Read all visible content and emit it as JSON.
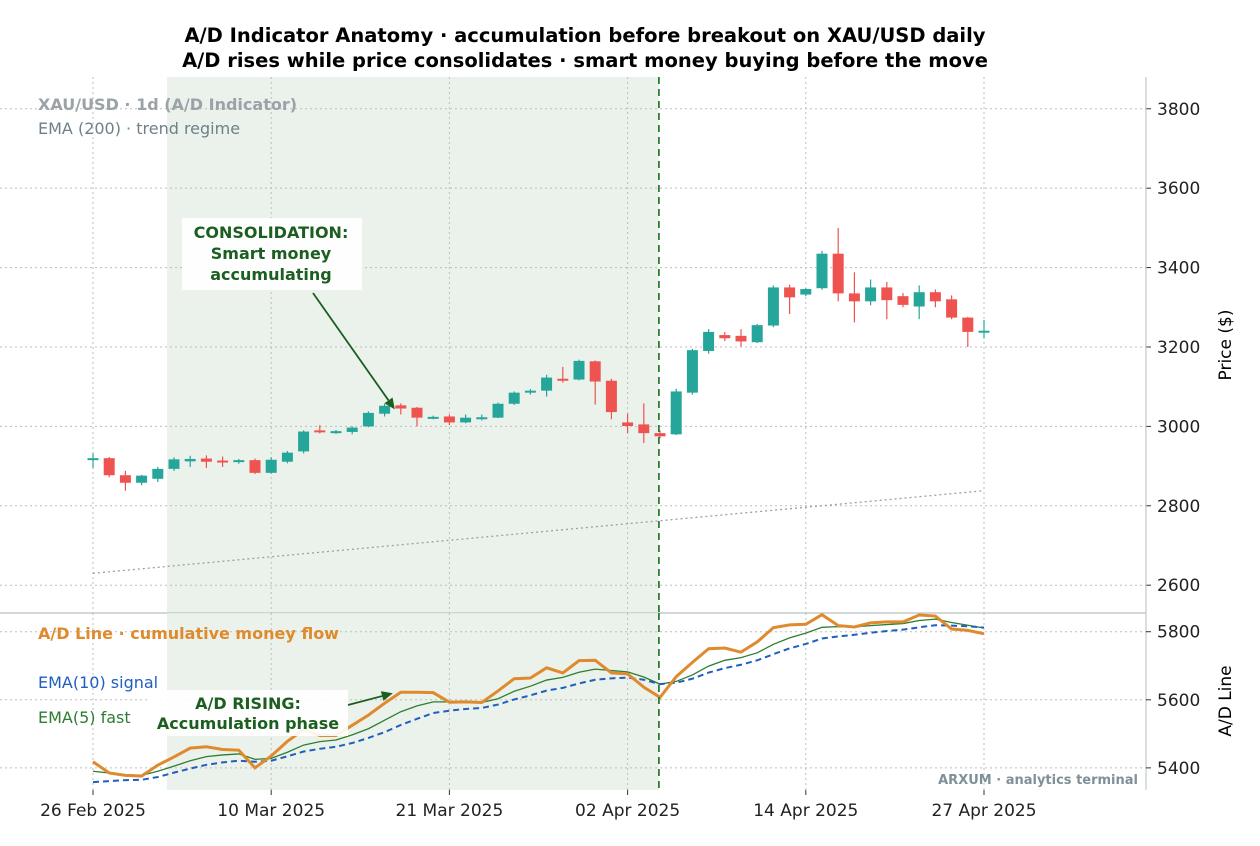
{
  "title": "A/D Indicator Anatomy · accumulation before breakout on XAU/USD daily",
  "subtitle": "A/D rises while price consolidates · smart money buying before the move",
  "watermark": "ARXUM · analytics terminal",
  "colors": {
    "up": "#26a69a",
    "down": "#ef5350",
    "ad_line": "#e08a2e",
    "ema10": "#1f5fbf",
    "ema5": "#2e7d32",
    "annotation": "#1b5e20",
    "shade": "#e6efe6",
    "breakout_line": "#2e7d32",
    "ema200": "#9e9e9e"
  },
  "chart_data": [
    {
      "type": "candlestick",
      "panel": "price",
      "legend_title": "XAU/USD · 1d (A/D Indicator)",
      "legend_sub": "EMA (200) · trend regime",
      "ylabel": "Price ($)",
      "ylim": [
        2530,
        3880
      ],
      "yticks": [
        2600,
        2800,
        3000,
        3200,
        3400,
        3600,
        3800
      ],
      "x_start": "2025-02-26",
      "xticks": [
        "26 Feb 2025",
        "10 Mar 2025",
        "21 Mar 2025",
        "02 Apr 2025",
        "14 Apr 2025",
        "27 Apr 2025"
      ],
      "grid": true,
      "ohlc": [
        {
          "o": 2918,
          "h": 2932,
          "l": 2895,
          "c": 2920
        },
        {
          "o": 2920,
          "h": 2923,
          "l": 2872,
          "c": 2877
        },
        {
          "o": 2877,
          "h": 2888,
          "l": 2838,
          "c": 2858
        },
        {
          "o": 2858,
          "h": 2878,
          "l": 2852,
          "c": 2876
        },
        {
          "o": 2868,
          "h": 2898,
          "l": 2860,
          "c": 2893
        },
        {
          "o": 2893,
          "h": 2922,
          "l": 2888,
          "c": 2917
        },
        {
          "o": 2912,
          "h": 2926,
          "l": 2898,
          "c": 2918
        },
        {
          "o": 2919,
          "h": 2927,
          "l": 2895,
          "c": 2911
        },
        {
          "o": 2914,
          "h": 2924,
          "l": 2898,
          "c": 2910
        },
        {
          "o": 2910,
          "h": 2918,
          "l": 2906,
          "c": 2915
        },
        {
          "o": 2915,
          "h": 2919,
          "l": 2880,
          "c": 2883
        },
        {
          "o": 2883,
          "h": 2922,
          "l": 2881,
          "c": 2916
        },
        {
          "o": 2911,
          "h": 2938,
          "l": 2907,
          "c": 2934
        },
        {
          "o": 2937,
          "h": 2990,
          "l": 2932,
          "c": 2987
        },
        {
          "o": 2990,
          "h": 3003,
          "l": 2982,
          "c": 2985
        },
        {
          "o": 2984,
          "h": 2991,
          "l": 2981,
          "c": 2988
        },
        {
          "o": 2986,
          "h": 3000,
          "l": 2980,
          "c": 2997
        },
        {
          "o": 3000,
          "h": 3038,
          "l": 2998,
          "c": 3034
        },
        {
          "o": 3032,
          "h": 3057,
          "l": 3025,
          "c": 3052
        },
        {
          "o": 3053,
          "h": 3058,
          "l": 3030,
          "c": 3045
        },
        {
          "o": 3047,
          "h": 3049,
          "l": 3000,
          "c": 3022
        },
        {
          "o": 3020,
          "h": 3027,
          "l": 3018,
          "c": 3024
        },
        {
          "o": 3025,
          "h": 3030,
          "l": 3003,
          "c": 3010
        },
        {
          "o": 3010,
          "h": 3030,
          "l": 3008,
          "c": 3022
        },
        {
          "o": 3019,
          "h": 3030,
          "l": 3015,
          "c": 3023
        },
        {
          "o": 3022,
          "h": 3060,
          "l": 3021,
          "c": 3057
        },
        {
          "o": 3057,
          "h": 3088,
          "l": 3054,
          "c": 3085
        },
        {
          "o": 3085,
          "h": 3094,
          "l": 3080,
          "c": 3090
        },
        {
          "o": 3090,
          "h": 3130,
          "l": 3075,
          "c": 3123
        },
        {
          "o": 3120,
          "h": 3150,
          "l": 3110,
          "c": 3115
        },
        {
          "o": 3118,
          "h": 3168,
          "l": 3116,
          "c": 3165
        },
        {
          "o": 3164,
          "h": 3166,
          "l": 3055,
          "c": 3113
        },
        {
          "o": 3115,
          "h": 3120,
          "l": 3018,
          "c": 3036
        },
        {
          "o": 3010,
          "h": 3032,
          "l": 2983,
          "c": 3001
        },
        {
          "o": 3005,
          "h": 3058,
          "l": 2958,
          "c": 2983
        },
        {
          "o": 2983,
          "h": 2990,
          "l": 2970,
          "c": 2975
        },
        {
          "o": 2980,
          "h": 3095,
          "l": 2978,
          "c": 3088
        },
        {
          "o": 3085,
          "h": 3195,
          "l": 3080,
          "c": 3192
        },
        {
          "o": 3190,
          "h": 3245,
          "l": 3183,
          "c": 3238
        },
        {
          "o": 3230,
          "h": 3238,
          "l": 3215,
          "c": 3222
        },
        {
          "o": 3228,
          "h": 3245,
          "l": 3201,
          "c": 3214
        },
        {
          "o": 3212,
          "h": 3258,
          "l": 3210,
          "c": 3255
        },
        {
          "o": 3254,
          "h": 3355,
          "l": 3250,
          "c": 3350
        },
        {
          "o": 3350,
          "h": 3357,
          "l": 3283,
          "c": 3325
        },
        {
          "o": 3332,
          "h": 3348,
          "l": 3328,
          "c": 3346
        },
        {
          "o": 3348,
          "h": 3442,
          "l": 3344,
          "c": 3435
        },
        {
          "o": 3435,
          "h": 3500,
          "l": 3315,
          "c": 3335
        },
        {
          "o": 3335,
          "h": 3388,
          "l": 3262,
          "c": 3315
        },
        {
          "o": 3315,
          "h": 3370,
          "l": 3305,
          "c": 3350
        },
        {
          "o": 3350,
          "h": 3364,
          "l": 3270,
          "c": 3318
        },
        {
          "o": 3328,
          "h": 3336,
          "l": 3300,
          "c": 3306
        },
        {
          "o": 3302,
          "h": 3355,
          "l": 3270,
          "c": 3338
        },
        {
          "o": 3338,
          "h": 3345,
          "l": 3300,
          "c": 3315
        },
        {
          "o": 3320,
          "h": 3330,
          "l": 3270,
          "c": 3274
        },
        {
          "o": 3274,
          "h": 3276,
          "l": 3200,
          "c": 3238
        },
        {
          "o": 3238,
          "h": 3268,
          "l": 3222,
          "c": 3241
        }
      ],
      "ema200": {
        "start": 2630,
        "end": 2838
      },
      "consolidation_shade": {
        "from_index": 5,
        "to_index": 35
      },
      "breakout_index": 35,
      "annotation": {
        "text_lines": [
          "CONSOLIDATION:",
          "Smart money",
          "accumulating"
        ],
        "target_index": 19,
        "target_value": 3043
      }
    },
    {
      "type": "line",
      "panel": "ad",
      "ylabel": "A/D Line",
      "ylim": [
        5335,
        5855
      ],
      "yticks": [
        5400,
        5600,
        5800
      ],
      "series": [
        {
          "name": "A/D Line · cumulative money flow",
          "key": "ad",
          "values": [
            5418,
            5385,
            5378,
            5376,
            5408,
            5432,
            5458,
            5462,
            5454,
            5452,
            5400,
            5435,
            5478,
            5512,
            5495,
            5495,
            5525,
            5555,
            5590,
            5622,
            5622,
            5621,
            5593,
            5594,
            5592,
            5626,
            5662,
            5664,
            5694,
            5679,
            5715,
            5716,
            5679,
            5676,
            5637,
            5607,
            5668,
            5710,
            5750,
            5752,
            5740,
            5770,
            5812,
            5820,
            5822,
            5850,
            5818,
            5814,
            5826,
            5829,
            5829,
            5849,
            5846,
            5808,
            5804,
            5794
          ]
        },
        {
          "name": "EMA(10) signal",
          "key": "ema10",
          "values": [
            5358,
            5361,
            5364,
            5365,
            5373,
            5386,
            5398,
            5409,
            5416,
            5421,
            5418,
            5421,
            5434,
            5448,
            5456,
            5462,
            5473,
            5488,
            5505,
            5526,
            5544,
            5561,
            5568,
            5573,
            5576,
            5586,
            5601,
            5613,
            5627,
            5635,
            5648,
            5659,
            5663,
            5665,
            5659,
            5646,
            5650,
            5662,
            5680,
            5693,
            5703,
            5716,
            5734,
            5751,
            5764,
            5780,
            5786,
            5791,
            5797,
            5802,
            5806,
            5813,
            5819,
            5818,
            5816,
            5812
          ]
        },
        {
          "name": "EMA(5) fast",
          "key": "ema5",
          "values": [
            5390,
            5385,
            5380,
            5378,
            5390,
            5405,
            5421,
            5433,
            5438,
            5441,
            5425,
            5428,
            5446,
            5467,
            5477,
            5482,
            5497,
            5515,
            5540,
            5565,
            5582,
            5594,
            5594,
            5594,
            5592,
            5603,
            5625,
            5640,
            5658,
            5666,
            5681,
            5690,
            5686,
            5682,
            5667,
            5646,
            5654,
            5673,
            5699,
            5716,
            5724,
            5738,
            5763,
            5782,
            5796,
            5813,
            5815,
            5814,
            5818,
            5821,
            5824,
            5833,
            5837,
            5827,
            5819,
            5811
          ]
        }
      ],
      "annotation": {
        "text_lines": [
          "A/D RISING:",
          "Accumulation phase"
        ],
        "target_index": 19,
        "target_value": 5622
      }
    }
  ]
}
